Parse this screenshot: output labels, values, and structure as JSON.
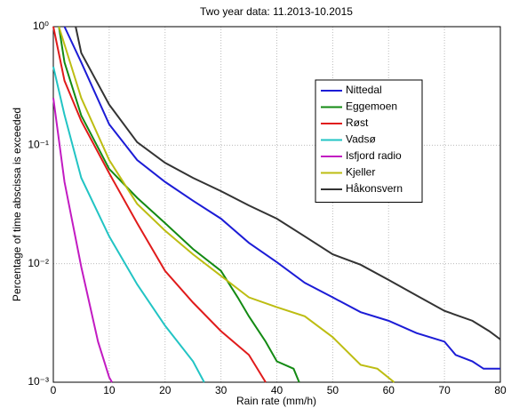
{
  "chart_data": {
    "type": "line",
    "title": "Two year data: 11.2013-10.2015",
    "xlabel": "Rain rate (mm/h)",
    "ylabel": "Percentage of time abscissa is exceeded",
    "xlim": [
      0,
      80
    ],
    "ylim": [
      0.001,
      1
    ],
    "log_y": true,
    "grid": true,
    "legend": "upper right",
    "xticks": [
      0,
      10,
      20,
      30,
      40,
      50,
      60,
      70,
      80
    ],
    "yticks": [
      {
        "value": 0.001,
        "label": "10⁻³"
      },
      {
        "value": 0.01,
        "label": "10⁻²"
      },
      {
        "value": 0.1,
        "label": "10⁻¹"
      },
      {
        "value": 1,
        "label": "10⁰"
      }
    ],
    "series": [
      {
        "name": "Nittedal",
        "color": "#1c1cd6",
        "x": [
          2,
          5,
          10,
          15,
          20,
          25,
          30,
          35,
          40,
          45,
          50,
          55,
          60,
          65,
          70,
          72,
          75,
          77,
          80
        ],
        "values": [
          1,
          0.5,
          0.15,
          0.075,
          0.049,
          0.034,
          0.024,
          0.015,
          0.0103,
          0.0069,
          0.0052,
          0.0039,
          0.0033,
          0.0026,
          0.0022,
          0.0017,
          0.0015,
          0.0013,
          0.0013
        ]
      },
      {
        "name": "Eggemoen",
        "color": "#138a13",
        "x": [
          1,
          2,
          5,
          10,
          15,
          20,
          25,
          30,
          33,
          35,
          38,
          40,
          43,
          44
        ],
        "values": [
          1,
          0.5,
          0.178,
          0.063,
          0.036,
          0.022,
          0.0133,
          0.0087,
          0.0052,
          0.0036,
          0.0022,
          0.0015,
          0.0013,
          0.001
        ]
      },
      {
        "name": "Røst",
        "color": "#e01b1b",
        "x": [
          0,
          2,
          5,
          10,
          15,
          20,
          25,
          30,
          35,
          38
        ],
        "values": [
          1,
          0.35,
          0.16,
          0.058,
          0.022,
          0.0087,
          0.0047,
          0.0027,
          0.0017,
          0.001
        ]
      },
      {
        "name": "Vadsø",
        "color": "#22c4c4",
        "x": [
          0,
          2,
          5,
          10,
          15,
          20,
          25,
          27
        ],
        "values": [
          0.46,
          0.18,
          0.053,
          0.017,
          0.0067,
          0.003,
          0.0015,
          0.001
        ]
      },
      {
        "name": "Isfjord radio",
        "color": "#c21bc2",
        "x": [
          0,
          2,
          5,
          8,
          10,
          10.5
        ],
        "values": [
          0.25,
          0.049,
          0.0094,
          0.0022,
          0.0011,
          0.001
        ]
      },
      {
        "name": "Kjeller",
        "color": "#bdbd12",
        "x": [
          1,
          3,
          5,
          10,
          15,
          20,
          25,
          30,
          35,
          40,
          45,
          50,
          55,
          58,
          61
        ],
        "values": [
          1,
          0.5,
          0.25,
          0.075,
          0.032,
          0.019,
          0.012,
          0.0079,
          0.0052,
          0.0043,
          0.0036,
          0.0024,
          0.0014,
          0.0013,
          0.001
        ]
      },
      {
        "name": "Håkonsvern",
        "color": "#333333",
        "x": [
          4,
          5,
          10,
          15,
          20,
          25,
          30,
          35,
          40,
          45,
          50,
          55,
          60,
          65,
          70,
          75,
          78,
          80
        ],
        "values": [
          1,
          0.6,
          0.22,
          0.106,
          0.071,
          0.053,
          0.041,
          0.031,
          0.024,
          0.017,
          0.012,
          0.0098,
          0.0073,
          0.0054,
          0.004,
          0.0033,
          0.0027,
          0.0023
        ]
      }
    ]
  }
}
